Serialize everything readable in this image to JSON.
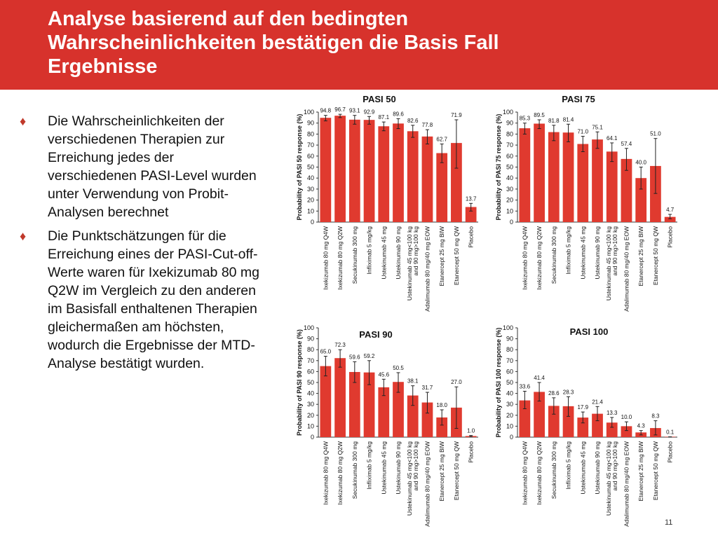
{
  "slide": {
    "title_line1": "Analyse basierend auf den bedingten",
    "title_line2": "Wahrscheinlichkeiten bestätigen die Basis Fall",
    "title_line3": "Ergebnisse",
    "page_number": "11",
    "accent_color": "#d7322c"
  },
  "bullets": [
    {
      "icon": "diamond-bullet",
      "glyph": "♦",
      "text": "Die Wahrscheinlichkeiten der verschiedenen Therapien zur Erreichung jedes der verschiedenen PASI-Level wurden unter Verwendung von Probit-Analysen berechnet"
    },
    {
      "icon": "diamond-bullet",
      "glyph": "♦",
      "text": "Die Punktschätzungen für die Erreichung eines der PASI-Cut-off-Werte waren für Ixekizumab 80 mg Q2W im Vergleich zu den anderen im Basisfall enthaltenen Therapien gleichermaßen am höchsten, wodurch die Ergebnisse der MTD-Analyse bestätigt wurden."
    }
  ],
  "chart_data": [
    {
      "type": "bar",
      "title": "PASI 50",
      "ylabel": "Probability of PASI 50 response (%)",
      "ylim": [
        0,
        100
      ],
      "yticks": [
        "0",
        "10",
        "20",
        "30",
        "40",
        "50",
        "60",
        "70",
        "80",
        "90",
        "100"
      ],
      "categories": [
        "Ixekizumab 80 mg Q4W",
        "Ixekizumab 80 mg Q2W",
        "Secukinumab 300 mg",
        "Infliximab 5 mg/kg",
        "Ustekinumab 45 mg",
        "Ustekinumab 90 mg",
        "Ustekinumab 45 mg<100 kg|and 90 mg>100 kg",
        "Adalimumab 80 mg/40 mg EOW",
        "Etanercept 25 mg BIW",
        "Etanercept 50 mg QW",
        "Placebo"
      ],
      "values": [
        94.8,
        96.7,
        93.1,
        92.9,
        87.1,
        89.6,
        82.6,
        77.8,
        62.7,
        71.9,
        13.7
      ],
      "labels": [
        "94.8",
        "96.7",
        "93.1",
        "92.9",
        "87.1",
        "89.6",
        "82.6",
        "77.8",
        "62.7",
        "71.9",
        "13.7"
      ],
      "err_low": [
        92,
        95,
        89,
        89,
        83,
        85,
        77,
        71,
        54,
        49,
        10
      ],
      "err_high": [
        97,
        98,
        97,
        96,
        91,
        94,
        88,
        84,
        71,
        93,
        17
      ],
      "bar_color": "#e03a2f"
    },
    {
      "type": "bar",
      "title": "PASI 75",
      "ylabel": "Probability of PASI 75 response (%)",
      "ylim": [
        0,
        100
      ],
      "yticks": [
        "0",
        "10",
        "20",
        "30",
        "40",
        "50",
        "60",
        "70",
        "80",
        "90",
        "100"
      ],
      "categories": [
        "Ixekizumab 80 mg Q4W",
        "Ixekizumab 80 mg Q2W",
        "Secukinumab 300 mg",
        "Infliximab 5 mg/kg",
        "Ustekinumab 45 mg",
        "Ustekinumab 90 mg",
        "Ustekinumab 45 mg<100 kg|and 90 mg>100 kg",
        "Adalimumab 80 mg/40 mg EOW",
        "Etanercept 25 mg BIW",
        "Etanercept 50 mg QW",
        "Placebo"
      ],
      "values": [
        85.3,
        89.5,
        81.8,
        81.4,
        71.0,
        75.1,
        64.1,
        57.4,
        40.0,
        51.0,
        4.7
      ],
      "labels": [
        "85.3",
        "89.5",
        "81.8",
        "81.4",
        "71.0",
        "75.1",
        "64.1",
        "57.4",
        "40.0",
        "51.0",
        "4.7"
      ],
      "err_low": [
        80,
        85,
        74,
        73,
        64,
        67,
        55,
        47,
        30,
        26,
        3
      ],
      "err_high": [
        90,
        93,
        88,
        89,
        78,
        82,
        72,
        67,
        50,
        76,
        7
      ],
      "bar_color": "#e03a2f"
    },
    {
      "type": "bar",
      "title": "PASI 90",
      "ylabel": "Probability of PASI 90 response (%)",
      "ylim": [
        0,
        100
      ],
      "yticks": [
        "0",
        "10",
        "20",
        "30",
        "40",
        "50",
        "60",
        "70",
        "80",
        "90",
        "100"
      ],
      "categories": [
        "Ixekizumab 80 mg Q4W",
        "Ixekizumab 80 mg Q2W",
        "Secukinumab 300 mg",
        "Infliximab 5 mg/kg",
        "Ustekinumab 45 mg",
        "Ustekinumab 90 mg",
        "Ustekinumab 45 mg<100 kg|and 90 mg>100 kg",
        "Adalimumab 80 mg/40 mg EOW",
        "Etanercept 25 mg BIW",
        "Etanercept 50 mg QW",
        "Placebo"
      ],
      "values": [
        65.0,
        72.3,
        59.6,
        59.2,
        45.6,
        50.5,
        38.1,
        31.7,
        18.0,
        27.0,
        1.0
      ],
      "labels": [
        "65.0",
        "72.3",
        "59.6",
        "59.2",
        "45.6",
        "50.5",
        "38.1",
        "31.7",
        "18.0",
        "27.0",
        "1.0"
      ],
      "err_low": [
        56,
        64,
        50,
        48,
        38,
        41,
        29,
        22,
        11,
        8,
        0.5
      ],
      "err_high": [
        74,
        80,
        69,
        70,
        53,
        59,
        47,
        41,
        25,
        46,
        1.5
      ],
      "bar_color": "#e03a2f"
    },
    {
      "type": "bar",
      "title": "PASI 100",
      "ylabel": "Probability of PASI 100 response (%)",
      "ylim": [
        0,
        100
      ],
      "yticks": [
        "0",
        "10",
        "20",
        "30",
        "40",
        "50",
        "60",
        "70",
        "80",
        "90",
        "100"
      ],
      "categories": [
        "Ixekizumab 80 mg Q4W",
        "Ixekizumab 80 mg Q2W",
        "Secukinumab 300 mg",
        "Infliximab 5 mg/kg",
        "Ustekinumab 45 mg",
        "Ustekinumab 90 mg",
        "Ustekinumab 45 mg<100 kg|and 90 mg>100 kg",
        "Adalimumab 80 mg/40 mg EOW",
        "Etanercept 25 mg BIW",
        "Etanercept 50 mg QW",
        "Placebo"
      ],
      "values": [
        33.6,
        41.4,
        28.6,
        28.3,
        17.9,
        21.4,
        13.3,
        10.0,
        4.3,
        8.3,
        0.1
      ],
      "labels": [
        "33.6",
        "41.4",
        "28.6",
        "28.3",
        "17.9",
        "21.4",
        "13.3",
        "10.0",
        "4.3",
        "8.3",
        "0.1"
      ],
      "err_low": [
        26,
        33,
        21,
        19,
        13,
        15,
        9,
        6,
        2,
        2,
        0
      ],
      "err_high": [
        42,
        50,
        36,
        37,
        23,
        28,
        18,
        14,
        6,
        15,
        0.3
      ],
      "bar_color": "#e03a2f"
    }
  ]
}
